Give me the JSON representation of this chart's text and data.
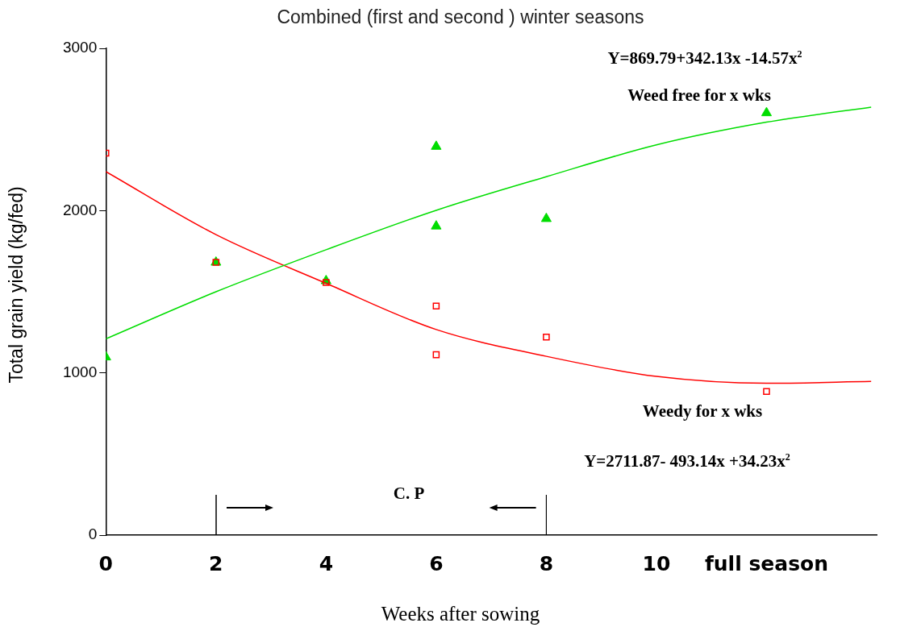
{
  "chart_data": {
    "type": "scatter",
    "title": "Combined (first and second ) winter seasons",
    "xlabel": "Weeks after sowing",
    "ylabel": "Total grain yield (kg/fed)",
    "xlim": [
      0,
      14
    ],
    "xticks": [
      0,
      2,
      4,
      6,
      8,
      10,
      {
        "value": 12,
        "label": "full season"
      }
    ],
    "ylim": [
      0,
      3000
    ],
    "yticks": [
      0,
      1000,
      2000,
      3000
    ],
    "grid": false,
    "legend": false,
    "series": [
      {
        "type": "scatter",
        "marker": "triangle",
        "color": "#00dd00",
        "x": [
          0,
          2,
          4,
          6,
          6,
          8,
          12
        ],
        "values": [
          1097,
          1681,
          1567,
          2395,
          1904,
          1950,
          2602
        ]
      },
      {
        "type": "scatter",
        "marker": "square",
        "color": "#ff0000",
        "x": [
          0,
          2,
          4,
          6,
          6,
          8,
          12
        ],
        "values": [
          2354,
          1681,
          1557,
          1412,
          1112,
          1221,
          885
        ]
      },
      {
        "type": "line",
        "marker": "none",
        "color": "#00dd00",
        "x": [
          0,
          2,
          4,
          6,
          8,
          10,
          12,
          13.9
        ],
        "values": [
          1210,
          1500,
          1759,
          2002,
          2209,
          2405,
          2545,
          2638
        ]
      },
      {
        "type": "line",
        "marker": "none",
        "color": "#ff0000",
        "x": [
          0,
          2,
          4,
          6,
          8,
          10,
          12,
          13.9
        ],
        "values": [
          2240,
          1852,
          1552,
          1267,
          1102,
          978,
          936,
          947
        ]
      }
    ],
    "annotations": [
      "Y=869.79+342.13x -14.57x$^{2}$",
      "Weed free for x wks",
      "Weedy for x wks",
      "Y=2711.87- 493.14x +34.23x$^{2}$",
      "C. P"
    ]
  }
}
